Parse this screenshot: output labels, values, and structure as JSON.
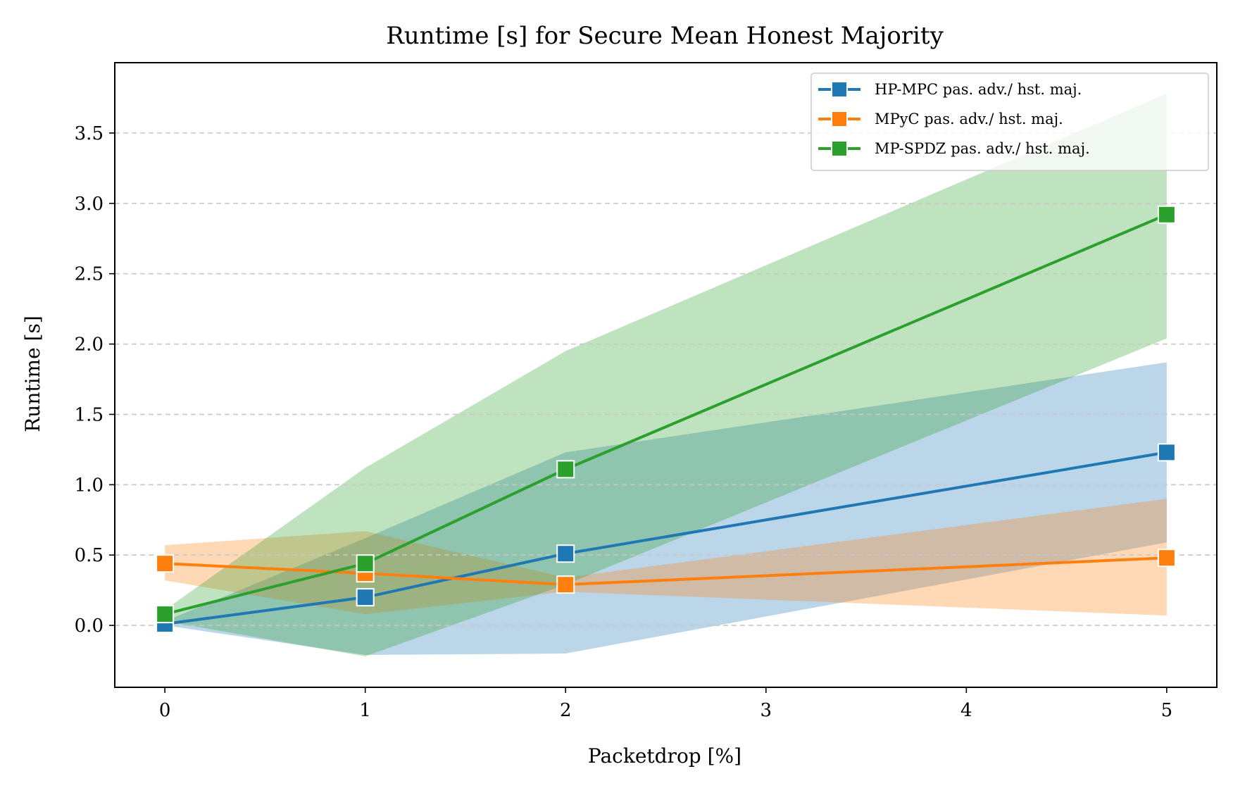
{
  "chart_data": {
    "type": "line",
    "title": "Runtime [s] for Secure Mean Honest Majority",
    "xlabel": "Packetdrop [%]",
    "ylabel": "Runtime [s]",
    "xlim": [
      -0.25,
      5.25
    ],
    "ylim": [
      -0.44,
      4.0
    ],
    "xticks": [
      0,
      1,
      2,
      3,
      4,
      5
    ],
    "xtick_labels": [
      "0",
      "1",
      "2",
      "3",
      "4",
      "5"
    ],
    "yticks": [
      0.0,
      0.5,
      1.0,
      1.5,
      2.0,
      2.5,
      3.0,
      3.5
    ],
    "ytick_labels": [
      "0.0",
      "0.5",
      "1.0",
      "1.5",
      "2.0",
      "2.5",
      "3.0",
      "3.5"
    ],
    "grid": "horizontal dashed",
    "legend_position": "top-right",
    "series": [
      {
        "name": "HP-MPC pas. adv./ hst. maj.",
        "color": "#1f77b4",
        "marker": "square",
        "x": [
          0,
          1,
          2,
          5
        ],
        "y": [
          0.01,
          0.2,
          0.51,
          1.23
        ],
        "band_lower": [
          0.0,
          -0.21,
          -0.2,
          0.59
        ],
        "band_upper": [
          0.03,
          0.62,
          1.23,
          1.87
        ]
      },
      {
        "name": "MPyC pas. adv./ hst. maj.",
        "color": "#ff7f0e",
        "marker": "square",
        "x": [
          0,
          1,
          2,
          5
        ],
        "y": [
          0.44,
          0.37,
          0.29,
          0.48
        ],
        "band_lower": [
          0.32,
          0.08,
          0.24,
          0.07
        ],
        "band_upper": [
          0.57,
          0.67,
          0.34,
          0.9
        ]
      },
      {
        "name": "MP-SPDZ pas. adv./ hst. maj.",
        "color": "#2ca02c",
        "marker": "square",
        "x": [
          0,
          1,
          2,
          5
        ],
        "y": [
          0.08,
          0.44,
          1.11,
          2.92
        ],
        "band_lower": [
          0.03,
          -0.22,
          0.29,
          2.04
        ],
        "band_upper": [
          0.11,
          1.12,
          1.95,
          3.78
        ]
      }
    ]
  }
}
